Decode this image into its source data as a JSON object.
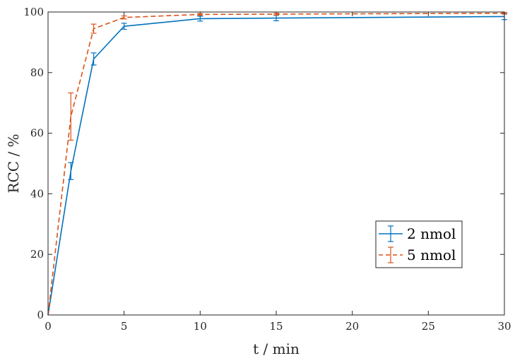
{
  "chart_data": {
    "type": "line",
    "title": "",
    "xlabel": "t / min",
    "ylabel": "RCC / %",
    "xlim": [
      0,
      30
    ],
    "ylim": [
      0,
      100
    ],
    "xticks": [
      0,
      5,
      10,
      15,
      20,
      25,
      30
    ],
    "yticks": [
      0,
      20,
      40,
      60,
      80,
      100
    ],
    "grid": false,
    "legend_position": "bottom-right",
    "series": [
      {
        "name": "2 nmol",
        "color": "#0072BD",
        "line_style": "solid",
        "x": [
          0,
          1.5,
          3,
          5,
          10,
          15,
          30
        ],
        "y": [
          0,
          47.5,
          84.5,
          95.3,
          97.8,
          98.0,
          98.5
        ],
        "err": [
          0,
          2.8,
          2.0,
          1.0,
          0.8,
          0.9,
          1.0
        ]
      },
      {
        "name": "5 nmol",
        "color": "#D95319",
        "line_style": "dashed",
        "x": [
          0,
          1.5,
          3,
          5,
          10,
          15,
          30
        ],
        "y": [
          0,
          65.5,
          94.5,
          98.2,
          99.2,
          99.3,
          99.6
        ],
        "err": [
          0,
          7.8,
          1.5,
          0.5,
          0.3,
          0.3,
          0.3
        ]
      }
    ]
  }
}
